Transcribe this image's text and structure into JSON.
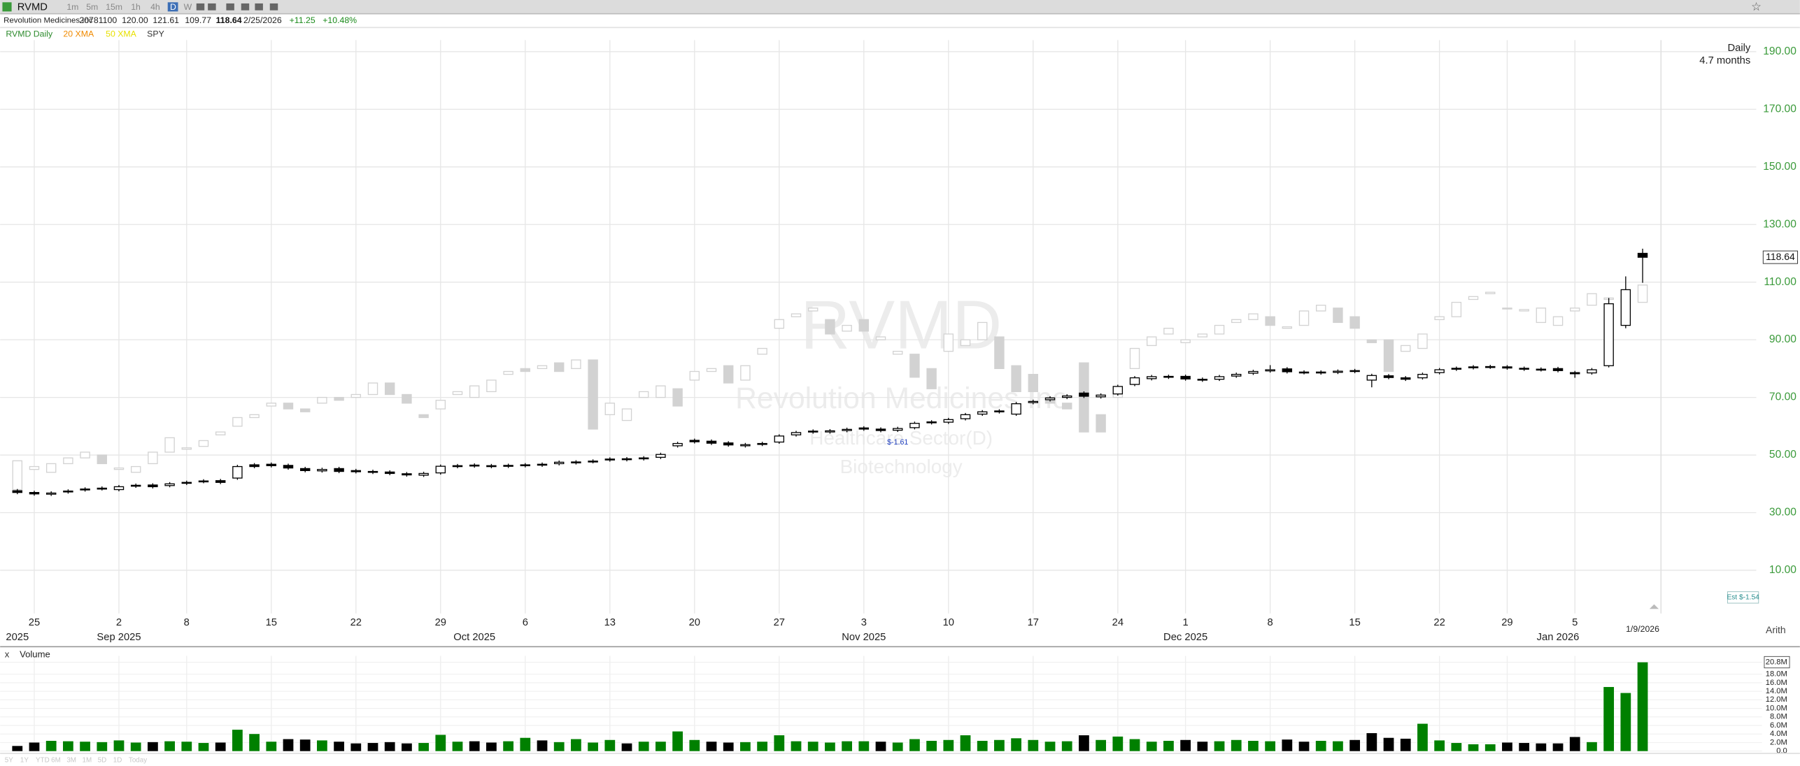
{
  "header": {
    "symbol": "RVMD",
    "timeframes": [
      "1m",
      "5m",
      "15m",
      "1h",
      "4h",
      "D",
      "W"
    ],
    "company": "Revolution Medicines Inc",
    "volume": "20781100",
    "open": "120.00",
    "high": "121.61",
    "low": "109.77",
    "close": "118.64",
    "date": "2/25/2026",
    "change": "+11.25",
    "change_pct": "+10.48%"
  },
  "indicators": [
    {
      "name": "20 XMA",
      "color": "#f08a00"
    },
    {
      "name": "50 XMA",
      "color": "#e8e000"
    }
  ],
  "chart_data": {
    "type": "candlestick",
    "period": "Daily",
    "span": "4.7 months",
    "scale": "Arith",
    "watermark": {
      "symbol": "RVMD",
      "company": "Revolution Medicines Inc",
      "sector": "Healthcare Sector(D)",
      "industry": "Biotechnology"
    },
    "earnings": {
      "label": "$-1.61",
      "estimate": "Est $-1.54"
    },
    "categories": [
      null,
      "25",
      null,
      null,
      null,
      null,
      "2",
      null,
      null,
      null,
      "8",
      null,
      null,
      null,
      null,
      "15",
      null,
      null,
      null,
      null,
      "22",
      null,
      null,
      null,
      null,
      "29",
      null,
      null,
      null,
      null,
      "6",
      null,
      null,
      null,
      null,
      "13",
      null,
      null,
      null,
      null,
      "20",
      null,
      null,
      null,
      null,
      "27",
      null,
      null,
      null,
      null,
      "3",
      null,
      null,
      null,
      null,
      "10",
      null,
      null,
      null,
      null,
      "17",
      null,
      null,
      null,
      null,
      "24",
      null,
      null,
      null,
      "1",
      null,
      null,
      null,
      null,
      "8",
      null,
      null,
      null,
      null,
      "15",
      null,
      null,
      null,
      null,
      "22",
      null,
      null,
      null,
      "29",
      null,
      null,
      null,
      "5",
      null,
      null,
      null,
      null
    ],
    "month_labels": [
      "2025",
      null,
      null,
      null,
      null,
      null,
      "Sep 2025",
      null,
      null,
      null,
      null,
      null,
      null,
      null,
      null,
      null,
      null,
      null,
      null,
      null,
      null,
      null,
      null,
      null,
      null,
      null,
      null,
      "Oct 2025",
      null,
      null,
      null,
      null,
      null,
      null,
      null,
      null,
      null,
      null,
      null,
      null,
      null,
      null,
      null,
      null,
      null,
      null,
      null,
      null,
      null,
      null,
      "Nov 2025",
      null,
      null,
      null,
      null,
      null,
      null,
      null,
      null,
      null,
      null,
      null,
      null,
      null,
      null,
      null,
      null,
      null,
      null,
      "Dec 2025",
      null,
      null,
      null,
      null,
      null,
      null,
      null,
      null,
      null,
      null,
      null,
      null,
      null,
      null,
      null,
      null,
      null,
      null,
      null,
      null,
      null,
      "Jan 2026",
      null,
      null,
      null,
      null,
      null
    ],
    "last_date_label": "1/9/2026",
    "ylim": [
      -5,
      194
    ],
    "yticks": [
      {
        "value": 10,
        "label": "10.00"
      },
      {
        "value": 30,
        "label": "30.00"
      },
      {
        "value": 50,
        "label": "50.00"
      },
      {
        "value": 70,
        "label": "70.00"
      },
      {
        "value": 90,
        "label": "90.00"
      },
      {
        "value": 110,
        "label": "110.00"
      },
      {
        "value": 130,
        "label": "130.00"
      },
      {
        "value": 150,
        "label": "150.00"
      },
      {
        "value": 170,
        "label": "170.00"
      },
      {
        "value": 190,
        "label": "190.00"
      }
    ],
    "grid": true,
    "series": [
      {
        "name": "RVMD Daily",
        "color": "#2e8b2e",
        "up_color": "#ffffff",
        "down_color": "#000000",
        "open": [
          37.6,
          37.0,
          36.4,
          37.2,
          37.9,
          38.5,
          38.0,
          39.2,
          39.6,
          39.4,
          40.2,
          40.8,
          41.1,
          42.0,
          46.6,
          46.8,
          46.4,
          45.3,
          44.5,
          45.3,
          44.6,
          44.3,
          44.1,
          43.5,
          43.0,
          43.8,
          46.0,
          46.5,
          46.3,
          46.1,
          46.3,
          46.8,
          47.0,
          47.3,
          47.7,
          48.3,
          48.7,
          48.7,
          49.2,
          53.2,
          55.1,
          54.8,
          54.2,
          53.2,
          53.7,
          54.5,
          57.0,
          58.3,
          58.0,
          58.5,
          59.4,
          59.0,
          58.6,
          59.5,
          61.5,
          61.4,
          62.6,
          64.2,
          65.0,
          64.2,
          68.2,
          69.2,
          70.0,
          71.5,
          70.2,
          71.2,
          74.5,
          76.5,
          77.0,
          77.3,
          76.3,
          76.3,
          77.4,
          78.4,
          79.2,
          79.9,
          78.8,
          78.5,
          78.7,
          79.3,
          76.0,
          77.5,
          76.8,
          76.8,
          78.6,
          79.8,
          80.3,
          80.5,
          80.6,
          80.1,
          79.8,
          80.0,
          78.6,
          78.5,
          81.0,
          95.0,
          120.0
        ],
        "high": [
          38.2,
          37.6,
          37.4,
          38.1,
          38.8,
          39.1,
          39.6,
          40.1,
          40.2,
          40.6,
          41.1,
          41.6,
          41.7,
          46.6,
          47.2,
          47.4,
          47.0,
          45.9,
          45.6,
          45.9,
          45.2,
          44.9,
          44.7,
          44.1,
          44.2,
          46.7,
          46.9,
          47.1,
          46.9,
          47.0,
          47.2,
          47.4,
          48.1,
          48.2,
          48.5,
          49.2,
          49.3,
          49.6,
          50.8,
          54.6,
          55.7,
          55.4,
          54.8,
          54.2,
          54.6,
          57.2,
          58.4,
          58.9,
          59.0,
          59.5,
          60.0,
          59.6,
          59.8,
          61.6,
          62.1,
          62.9,
          64.6,
          65.6,
          65.9,
          68.4,
          69.2,
          70.4,
          71.1,
          72.1,
          71.4,
          74.4,
          77.4,
          77.8,
          77.9,
          77.9,
          76.9,
          77.8,
          78.6,
          79.6,
          81.2,
          80.5,
          79.4,
          79.4,
          79.7,
          79.9,
          78.2,
          78.1,
          77.4,
          78.6,
          80.2,
          80.7,
          81.2,
          81.3,
          81.2,
          80.7,
          80.4,
          80.6,
          79.2,
          80.2,
          104.5,
          112.0,
          121.61
        ],
        "low": [
          36.4,
          35.9,
          35.8,
          36.6,
          37.3,
          37.7,
          37.4,
          38.6,
          38.4,
          38.8,
          39.6,
          40.2,
          39.9,
          41.4,
          45.4,
          45.7,
          44.9,
          44.0,
          43.9,
          43.7,
          43.6,
          43.4,
          43.0,
          42.5,
          42.4,
          43.2,
          45.4,
          45.6,
          45.4,
          45.5,
          45.7,
          45.9,
          46.4,
          46.7,
          47.1,
          47.7,
          47.8,
          48.1,
          48.6,
          52.6,
          54.0,
          53.5,
          52.9,
          52.6,
          53.1,
          53.9,
          56.4,
          57.4,
          57.4,
          57.9,
          58.4,
          57.9,
          58.0,
          58.9,
          60.6,
          60.8,
          62.0,
          63.6,
          64.4,
          63.6,
          67.6,
          68.6,
          69.4,
          69.8,
          69.6,
          70.6,
          73.9,
          75.9,
          76.4,
          75.8,
          75.4,
          75.7,
          76.8,
          77.8,
          78.6,
          78.3,
          78.0,
          77.9,
          78.1,
          78.4,
          73.5,
          76.3,
          75.7,
          76.2,
          78.0,
          79.2,
          79.7,
          79.9,
          79.6,
          79.2,
          79.0,
          78.7,
          76.8,
          77.9,
          80.4,
          94.0,
          109.77
        ],
        "close": [
          37.0,
          36.5,
          36.8,
          37.5,
          38.2,
          38.3,
          39.0,
          39.5,
          39.0,
          40.0,
          40.5,
          41.0,
          40.5,
          46.0,
          46.0,
          46.3,
          45.5,
          44.6,
          45.0,
          44.3,
          44.2,
          44.0,
          43.6,
          43.1,
          43.6,
          46.1,
          46.3,
          46.2,
          46.0,
          46.4,
          46.6,
          46.5,
          47.5,
          47.6,
          47.9,
          48.6,
          48.4,
          49.0,
          50.2,
          54.0,
          54.6,
          54.1,
          53.5,
          53.6,
          54.0,
          56.6,
          57.8,
          58.0,
          58.4,
          58.9,
          59.0,
          58.5,
          59.2,
          61.0,
          61.2,
          62.3,
          64.0,
          65.0,
          65.3,
          67.8,
          68.6,
          69.8,
          70.5,
          70.4,
          70.8,
          73.8,
          76.8,
          77.2,
          77.3,
          76.4,
          76.0,
          77.2,
          78.0,
          79.0,
          79.6,
          78.9,
          78.6,
          78.8,
          79.1,
          79.0,
          77.6,
          76.9,
          76.3,
          78.0,
          79.6,
          80.1,
          80.6,
          80.7,
          80.2,
          79.8,
          79.6,
          79.3,
          78.2,
          79.6,
          102.5,
          107.39,
          118.64
        ]
      },
      {
        "name": "SPY",
        "color": "#d2d2d2",
        "up_color": "#ffffff",
        "open": [
          38,
          45,
          44,
          47,
          49,
          50,
          45,
          44,
          47,
          51,
          52,
          53,
          57,
          60,
          63,
          67,
          68,
          66,
          68,
          70,
          70,
          71,
          75,
          71,
          64,
          66,
          71,
          70,
          72,
          78,
          80,
          80,
          82,
          80,
          83,
          64,
          62,
          70,
          70,
          73,
          76,
          79,
          81,
          76,
          85,
          94,
          98,
          100,
          97,
          93,
          97,
          90,
          85,
          85,
          80,
          86,
          88,
          90,
          91,
          81,
          78,
          70,
          68,
          82,
          64,
          70,
          80,
          88,
          92,
          89,
          91,
          92,
          96,
          97,
          98,
          94,
          95,
          100,
          101,
          98,
          90,
          90,
          86,
          87,
          97,
          98,
          104,
          106,
          101,
          100,
          96,
          95,
          100,
          102,
          104,
          103,
          103
        ],
        "close": [
          48,
          46,
          47,
          49,
          51,
          47,
          45.5,
          46,
          51,
          56,
          52.5,
          55,
          58,
          63,
          64,
          68,
          66,
          65,
          70,
          69,
          71,
          75,
          71,
          68,
          63,
          69,
          72,
          74,
          76,
          79,
          79,
          81,
          79,
          83,
          59,
          68,
          66,
          72,
          74,
          67,
          79,
          80,
          75,
          81,
          87,
          97,
          99,
          101,
          92,
          95,
          93,
          91,
          86,
          77,
          73,
          92,
          90,
          96,
          80,
          72,
          72,
          68,
          66,
          58,
          58,
          73,
          87,
          91,
          94,
          90,
          92,
          95,
          97,
          99,
          95,
          94.5,
          100,
          102,
          96,
          94,
          89,
          79,
          88,
          92,
          98,
          103,
          105,
          106.5,
          101,
          100.5,
          101,
          98,
          101,
          106,
          104.5,
          104,
          109
        ]
      }
    ],
    "volume": {
      "title": "Volume",
      "panel_close": "x",
      "up_color": "#008000",
      "down_color": "#000000",
      "ylim": [
        0,
        21.2
      ],
      "yticks": [
        {
          "value": 0,
          "label": "0.0"
        },
        {
          "value": 2,
          "label": "2.0M"
        },
        {
          "value": 4,
          "label": "4.0M"
        },
        {
          "value": 6,
          "label": "6.0M"
        },
        {
          "value": 8,
          "label": "8.0M"
        },
        {
          "value": 10,
          "label": "10.0M"
        },
        {
          "value": 12,
          "label": "12.0M"
        },
        {
          "value": 14,
          "label": "14.0M"
        },
        {
          "value": 16,
          "label": "16.0M"
        },
        {
          "value": 18,
          "label": "18.0M"
        },
        {
          "value": 20.8,
          "label": "20.8M"
        }
      ],
      "values": [
        1.2,
        2.0,
        2.4,
        2.3,
        2.2,
        2.1,
        2.5,
        2.0,
        2.1,
        2.3,
        2.2,
        1.9,
        2.0,
        5.0,
        4.0,
        2.2,
        2.8,
        2.7,
        2.5,
        2.2,
        1.8,
        1.9,
        2.1,
        1.8,
        1.9,
        3.8,
        2.2,
        2.3,
        2.0,
        2.3,
        3.1,
        2.5,
        2.1,
        2.8,
        2.0,
        2.6,
        1.8,
        2.2,
        2.2,
        4.6,
        2.6,
        2.2,
        2.0,
        2.1,
        2.2,
        3.7,
        2.3,
        2.2,
        2.0,
        2.3,
        2.3,
        2.2,
        2.0,
        2.8,
        2.4,
        2.6,
        3.7,
        2.4,
        2.6,
        3.0,
        2.6,
        2.2,
        2.3,
        3.7,
        2.6,
        3.4,
        2.8,
        2.2,
        2.4,
        2.6,
        2.2,
        2.3,
        2.6,
        2.4,
        2.3,
        2.7,
        2.2,
        2.4,
        2.3,
        2.6,
        4.2,
        3.1,
        2.9,
        6.4,
        2.5,
        1.9,
        1.6,
        1.6,
        2.0,
        1.9,
        1.8,
        1.8,
        3.3,
        2.1,
        15.0,
        13.6,
        20.78
      ]
    }
  },
  "ranges": [
    "5Y",
    "1Y",
    "YTD",
    "6M",
    "3M",
    "1M",
    "5D",
    "1D",
    "Today"
  ]
}
